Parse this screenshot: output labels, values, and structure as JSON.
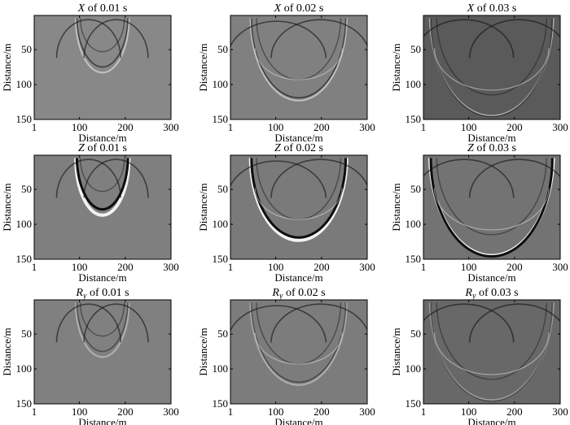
{
  "figure": {
    "panels": [
      {
        "title_var": "X",
        "title_sub": "",
        "title_rest": " of 0.01 s",
        "time_s": 0.01,
        "component": "X"
      },
      {
        "title_var": "X",
        "title_sub": "",
        "title_rest": " of 0.02 s",
        "time_s": 0.02,
        "component": "X"
      },
      {
        "title_var": "X",
        "title_sub": "",
        "title_rest": " of 0.03 s",
        "time_s": 0.03,
        "component": "X"
      },
      {
        "title_var": "Z",
        "title_sub": "",
        "title_rest": " of 0.01 s",
        "time_s": 0.01,
        "component": "Z"
      },
      {
        "title_var": "Z",
        "title_sub": "",
        "title_rest": " of 0.02 s",
        "time_s": 0.02,
        "component": "Z"
      },
      {
        "title_var": "Z",
        "title_sub": "",
        "title_rest": " of 0.03 s",
        "time_s": 0.03,
        "component": "Z"
      },
      {
        "title_var": "R",
        "title_sub": "y",
        "title_rest": " of 0.01 s",
        "time_s": 0.01,
        "component": "Ry"
      },
      {
        "title_var": "R",
        "title_sub": "y",
        "title_rest": " of 0.02 s",
        "time_s": 0.02,
        "component": "Ry"
      },
      {
        "title_var": "R",
        "title_sub": "y",
        "title_rest": " of 0.03 s",
        "time_s": 0.03,
        "component": "Ry"
      }
    ],
    "xlabel": "Distance/m",
    "ylabel": "Distance/m",
    "xticks": [
      "1",
      "100",
      "200",
      "300"
    ],
    "yticks": [
      "50",
      "100",
      "150"
    ],
    "colors": {
      "background_gray": "#808080",
      "axis": "#000000"
    }
  }
}
